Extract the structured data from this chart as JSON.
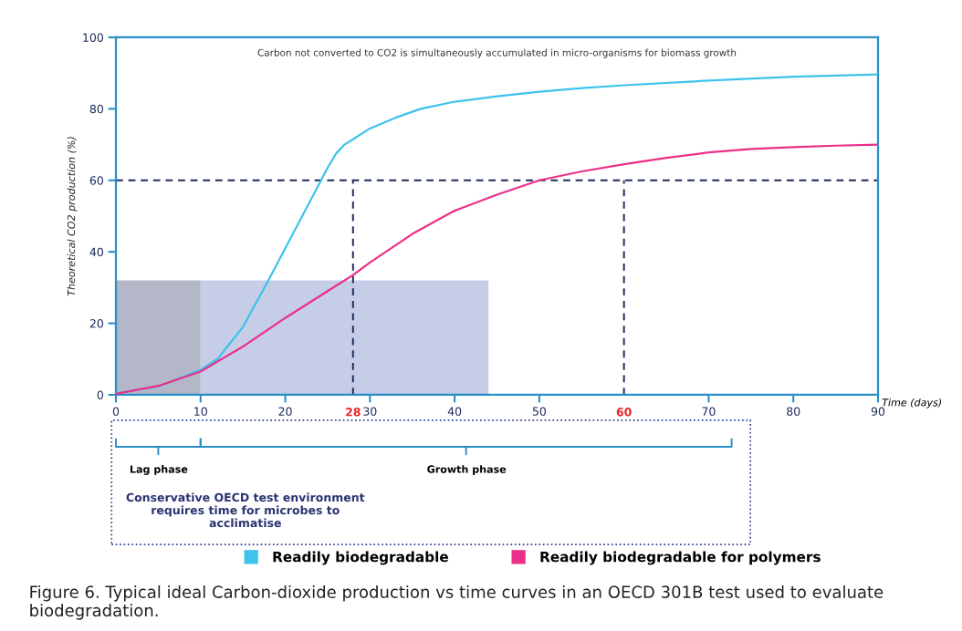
{
  "chart_data": {
    "type": "line",
    "xlabel": "Time (days)",
    "ylabel": "Theoretical CO2 production (%)",
    "xlim": [
      0,
      90
    ],
    "xticks": [
      0,
      10,
      20,
      30,
      40,
      50,
      70,
      80,
      90
    ],
    "ylim": [
      0,
      100
    ],
    "yticks": [
      0,
      20,
      40,
      60,
      80,
      100
    ],
    "grid": false,
    "legend": "bottom",
    "marker": "none",
    "line_style": "solid",
    "series": [
      {
        "name": "Readily biodegradable",
        "color": "#3ec3ec",
        "x": [
          0,
          5,
          10,
          12,
          15,
          18,
          20,
          22,
          24,
          25,
          26,
          27,
          28,
          30,
          33,
          36,
          40,
          45,
          50,
          55,
          60,
          70,
          80,
          90
        ],
        "values": [
          0.5,
          2.3,
          7,
          10,
          19,
          32,
          41,
          50,
          59,
          63.5,
          67.5,
          70,
          71.5,
          74.5,
          77.5,
          80,
          82,
          83.5,
          84.8,
          85.8,
          86.6,
          87.9,
          89,
          89.6
        ]
      },
      {
        "name": "Readily biodegradable for polymers",
        "color": "#ec2f8a",
        "x": [
          0,
          5,
          10,
          15,
          20,
          25,
          28,
          30,
          35,
          40,
          45,
          50,
          55,
          60,
          65,
          70,
          75,
          80,
          85,
          90
        ],
        "values": [
          0.3,
          2.5,
          6.5,
          13.5,
          21.5,
          29,
          33.5,
          37,
          45,
          51.5,
          56,
          60,
          62.5,
          64.5,
          66.3,
          67.8,
          68.8,
          69.3,
          69.7,
          70
        ]
      }
    ],
    "ref_lines": [
      {
        "axis": "y",
        "value": 60,
        "color": "#1f2a5c",
        "line_style": "dashed"
      },
      {
        "axis": "x",
        "value": 28,
        "label": "28",
        "color": "#1f2a5c",
        "line_style": "dashed"
      },
      {
        "axis": "x",
        "value": 60,
        "label": "60",
        "color": "#1f2a5c",
        "line_style": "dashed"
      }
    ],
    "bands": [
      {
        "axis": "x",
        "from": 0,
        "to": 10,
        "color": "#b4b7c8"
      },
      {
        "axis": "x",
        "from": 10,
        "to": 44,
        "color": "#c6cde6"
      }
    ],
    "annotations": [
      "Carbon not converted to CO2 is simultaneously accumulated in micro-organisms for biomass growth",
      "Lag phase",
      "Growth phase",
      "Conservative OECD test environment requires time for microbes to acclimatise",
      "Figure 6. Typical ideal Carbon-dioxide production vs time curves in an OECD 301B test used to evaluate biodegradation."
    ]
  }
}
